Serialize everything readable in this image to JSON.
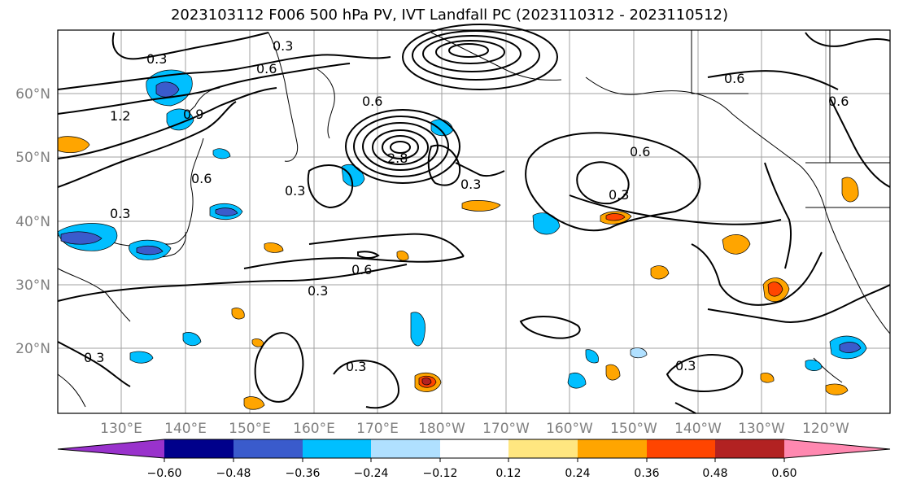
{
  "title": "2023103112 F006 500 hPa PV, IVT Landfall PC (2023110312 - 2023110512)",
  "map": {
    "lat_labels": [
      "60°N",
      "50°N",
      "40°N",
      "30°N",
      "20°N"
    ],
    "lon_labels": [
      "130°E",
      "140°E",
      "150°E",
      "160°E",
      "170°E",
      "180°W",
      "170°W",
      "160°W",
      "150°W",
      "140°W",
      "130°W",
      "120°W"
    ],
    "contour_labels": [
      "0.3",
      "0.6",
      "1.2",
      "0.9",
      "0.6",
      "0.3",
      "0.6",
      "0.3",
      "0.6",
      "0.3",
      "2.8",
      "0.6",
      "0.3",
      "0.3",
      "0.6",
      "0.3",
      "0.3",
      "0.6",
      "0.3",
      "0.3"
    ]
  },
  "colorbar": {
    "colors": [
      "#9932cc",
      "#00008b",
      "#3a5bcc",
      "#00bfff",
      "#b0e0ff",
      "#ffffff",
      "#ffe680",
      "#ffa500",
      "#ff4500",
      "#b22222",
      "#ff88b0"
    ],
    "tick_labels": [
      "−0.60",
      "−0.48",
      "−0.36",
      "−0.24",
      "−0.12",
      "0.12",
      "0.24",
      "0.36",
      "0.48",
      "0.60"
    ]
  }
}
